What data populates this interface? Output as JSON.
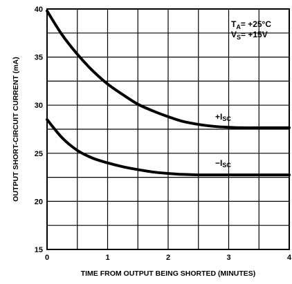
{
  "chart_data": {
    "type": "line",
    "xlabel": "TIME FROM OUTPUT BEING SHORTED (MINUTES)",
    "ylabel": "OUTPUT SHORT-CIRCUIT CURRENT (mA)",
    "xlim": [
      0,
      4
    ],
    "ylim": [
      15,
      40
    ],
    "x_ticks": [
      "0",
      "1",
      "2",
      "3",
      "4"
    ],
    "y_ticks": [
      "15",
      "20",
      "25",
      "30",
      "35",
      "40"
    ],
    "grid": true,
    "annotation": {
      "ta_main": "T",
      "ta_sub": "A",
      "ta_value": "= +25°C",
      "vs_main": "V",
      "vs_sub": "S",
      "vs_value": "= +15V"
    },
    "series": [
      {
        "label_sign": "+I",
        "label_sub": "SC",
        "x": [
          0,
          0.25,
          0.5,
          0.75,
          1.0,
          1.25,
          1.5,
          1.75,
          2.0,
          2.25,
          2.5,
          2.75,
          3.0,
          3.25,
          3.5,
          3.75,
          4.0
        ],
        "y": [
          39.8,
          37.3,
          35.3,
          33.6,
          32.2,
          31.1,
          30.1,
          29.4,
          28.8,
          28.3,
          28.0,
          27.8,
          27.7,
          27.65,
          27.65,
          27.65,
          27.65
        ]
      },
      {
        "label_sign": "−I",
        "label_sub": "SC",
        "x": [
          0,
          0.25,
          0.5,
          0.75,
          1.0,
          1.25,
          1.5,
          1.75,
          2.0,
          2.25,
          2.5,
          2.75,
          3.0,
          3.25,
          3.5,
          3.75,
          4.0
        ],
        "y": [
          28.5,
          26.6,
          25.3,
          24.5,
          24.0,
          23.6,
          23.3,
          23.05,
          22.9,
          22.8,
          22.75,
          22.75,
          22.75,
          22.75,
          22.75,
          22.75,
          22.75
        ]
      }
    ]
  }
}
